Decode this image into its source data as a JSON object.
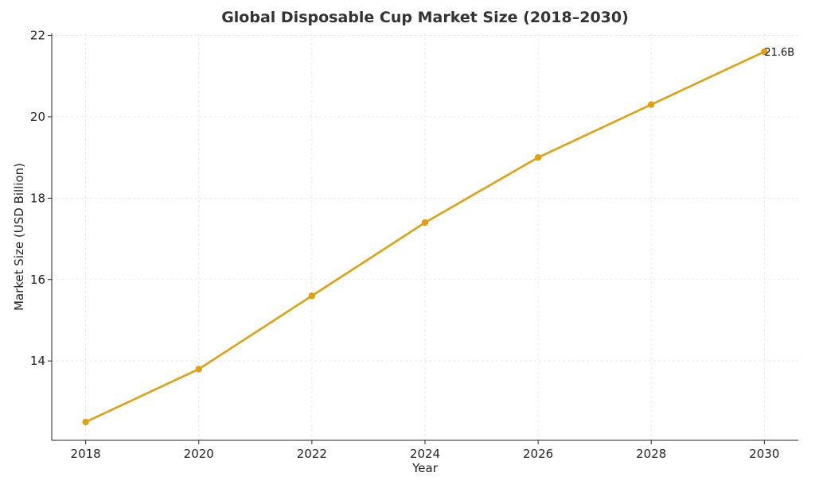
{
  "chart_data": {
    "type": "line",
    "title": "Global Disposable Cup Market Size (2018–2030)",
    "xlabel": "Year",
    "ylabel": "Market Size (USD Billion)",
    "x": [
      2018,
      2020,
      2022,
      2024,
      2026,
      2028,
      2030
    ],
    "series": [
      {
        "values": [
          12.5,
          13.8,
          15.6,
          17.4,
          19.0,
          20.3,
          21.6
        ],
        "color": "#E0A10E"
      }
    ],
    "xlim": [
      2017.4,
      2030.6
    ],
    "ylim": [
      12.05,
      22.05
    ],
    "xticks": [
      "2018",
      "2020",
      "2022",
      "2024",
      "2026",
      "2028",
      "2030"
    ],
    "yticks": [
      "14",
      "16",
      "18",
      "20",
      "22"
    ],
    "grid": true,
    "annotations": [
      {
        "x": 2030,
        "y": 21.6,
        "text": "21.6B"
      }
    ]
  }
}
